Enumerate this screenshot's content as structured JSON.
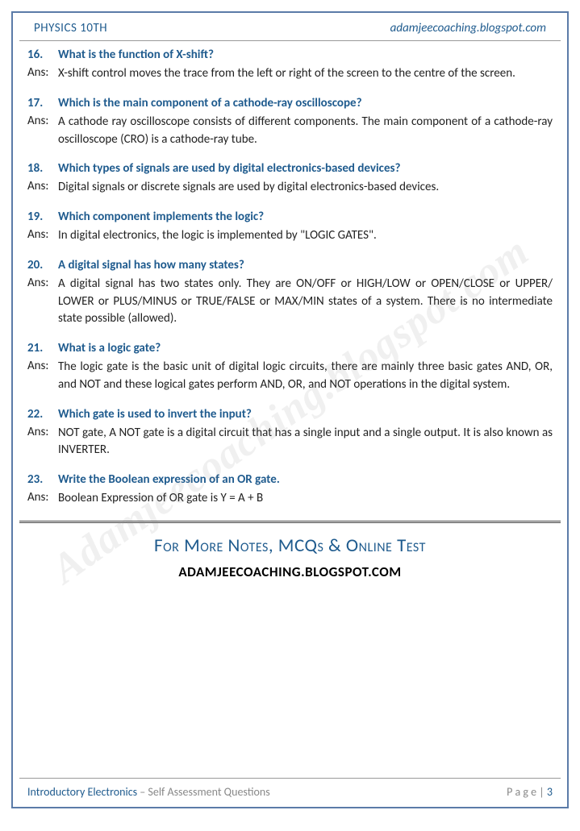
{
  "header": {
    "left": "PHYSICS 10TH",
    "right": "adamjeecoaching.blogspot.com"
  },
  "watermark": "Adamjeecoaching.blogspot.com",
  "ans_label": "Ans:",
  "qa": [
    {
      "n": "16.",
      "q": "What is the function of X-shift?",
      "a": "X-shift control moves the trace from the left or right of the screen to the centre of the screen."
    },
    {
      "n": "17.",
      "q": "Which is the main component of a cathode-ray oscilloscope?",
      "a": "A cathode ray oscilloscope consists of different components. The main component of a cathode-ray oscilloscope (CRO) is a cathode-ray tube."
    },
    {
      "n": "18.",
      "q": "Which types of signals are used by digital electronics-based devices?",
      "a": "Digital signals or discrete signals are used by digital electronics-based devices."
    },
    {
      "n": "19.",
      "q": "Which component implements the logic?",
      "a": "In digital electronics, the logic is implemented by \"LOGIC GATES\"."
    },
    {
      "n": "20.",
      "q": "A digital signal has how many states?",
      "a": "A digital signal has two states only. They are ON/OFF or HIGH/LOW or OPEN/CLOSE or UPPER/ LOWER or PLUS/MINUS or TRUE/FALSE or MAX/MIN states of a system. There is no intermediate state possible (allowed)."
    },
    {
      "n": "21.",
      "q": "What is a logic gate?",
      "a": "The logic gate is the basic unit of digital logic circuits, there are mainly three basic gates AND, OR, and NOT and these logical gates perform AND, OR, and NOT operations in the digital system."
    },
    {
      "n": "22.",
      "q": "Which gate is used to invert the input?",
      "a": "NOT gate, A NOT gate is a digital circuit that has a single input and a single output. It is also known as INVERTER."
    },
    {
      "n": "23.",
      "q": "Write the Boolean expression of an OR gate.",
      "a": "Boolean Expression of OR gate is Y = A + B"
    }
  ],
  "promo": {
    "title": "For More Notes, MCQs & Online Test",
    "url": "ADAMJEECOACHING.BLOGSPOT.COM"
  },
  "footer": {
    "topic": "Introductory Electronics",
    "sub": " – Self Assessment Questions",
    "page_label": "P a g e  | ",
    "page_num": "3"
  }
}
